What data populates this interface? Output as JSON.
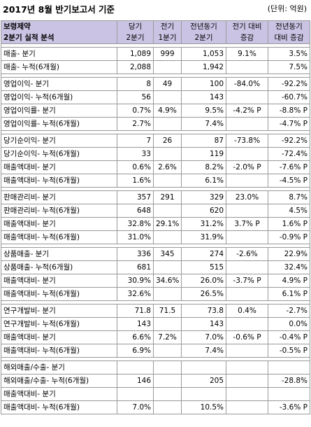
{
  "title": "2017년 8월 반기보고서 기준",
  "unit": "(단위: 억원)",
  "header": {
    "company": "보령제약",
    "subtitle": "2분기 실적 분석",
    "cols": [
      [
        "당기",
        "2분기"
      ],
      [
        "전기",
        "1분기"
      ],
      [
        "전년동기",
        "2분기"
      ],
      [
        "전기 대비",
        "증감"
      ],
      [
        "전년동기",
        "대비 증감"
      ]
    ]
  },
  "groups": [
    [
      [
        "매출- 분기",
        "1,089",
        "999",
        "1,053",
        "9.1%",
        "3.5%"
      ],
      [
        "매출- 누적(6개월)",
        "2,088",
        "",
        "1,942",
        "",
        "7.5%"
      ]
    ],
    [
      [
        "영업이익- 분기",
        "8",
        "49",
        "100",
        "-84.0%",
        "-92.2%"
      ],
      [
        "영업이익- 누적(6개월)",
        "56",
        "",
        "143",
        "",
        "-60.7%"
      ],
      [
        "영업이익률- 분기",
        "0.7%",
        "4.9%",
        "9.5%",
        "-4.2% P",
        "-8.8% P"
      ],
      [
        "영업이익률- 누적(6개월)",
        "2.7%",
        "",
        "7.4%",
        "",
        "-4.7% P"
      ]
    ],
    [
      [
        "당기순이익- 분기",
        "7",
        "26",
        "87",
        "-73.8%",
        "-92.2%"
      ],
      [
        "당기순이익- 누적(6개월)",
        "33",
        "",
        "119",
        "",
        "-72.4%"
      ],
      [
        "매출액대비- 분기",
        "0.6%",
        "2.6%",
        "8.2%",
        "-2.0% P",
        "-7.6% P"
      ],
      [
        "매출액대비- 누적(6개월)",
        "1.6%",
        "",
        "6.1%",
        "",
        "-4.5% P"
      ]
    ],
    [
      [
        "판매관리비- 분기",
        "357",
        "291",
        "329",
        "23.0%",
        "8.7%"
      ],
      [
        "판매관리비- 누적(6개월)",
        "648",
        "",
        "620",
        "",
        "4.5%"
      ],
      [
        "매출액대비- 분기",
        "32.8%",
        "29.1%",
        "31.2%",
        "3.7% P",
        "1.6% P"
      ],
      [
        "매출액대비- 누적(6개월)",
        "31.0%",
        "",
        "31.9%",
        "",
        "-0.9% P"
      ]
    ],
    [
      [
        "상품매출- 분기",
        "336",
        "345",
        "274",
        "-2.6%",
        "22.9%"
      ],
      [
        "상품매출- 누적(6개월)",
        "681",
        "",
        "515",
        "",
        "32.4%"
      ],
      [
        "매출액대비- 분기",
        "30.9%",
        "34.6%",
        "26.0%",
        "-3.7% P",
        "4.9% P"
      ],
      [
        "매출액대비- 누적(6개월)",
        "32.6%",
        "",
        "26.5%",
        "",
        "6.1% P"
      ]
    ],
    [
      [
        "연구개발비- 분기",
        "71.8",
        "71.5",
        "73.8",
        "0.4%",
        "-2.7%"
      ],
      [
        "연구개발비- 누적(6개월)",
        "143",
        "",
        "143",
        "",
        "0.0%"
      ],
      [
        "매출액대비- 분기",
        "6.6%",
        "7.2%",
        "7.0%",
        "-0.6% P",
        "-0.4% P"
      ],
      [
        "매출액대비- 누적(6개월)",
        "6.9%",
        "",
        "7.4%",
        "",
        "-0.5% P"
      ]
    ],
    [
      [
        "해외매출/수출- 분기",
        "",
        "",
        "",
        "",
        ""
      ],
      [
        "해외매출/수출- 누적(6개월)",
        "146",
        "",
        "205",
        "",
        "-28.8%"
      ],
      [
        "매출액대비- 분기",
        "",
        "",
        "",
        "",
        ""
      ],
      [
        "매출액대비- 누적(6개월)",
        "7.0%",
        "",
        "10.5%",
        "",
        "-3.6% P"
      ]
    ]
  ]
}
